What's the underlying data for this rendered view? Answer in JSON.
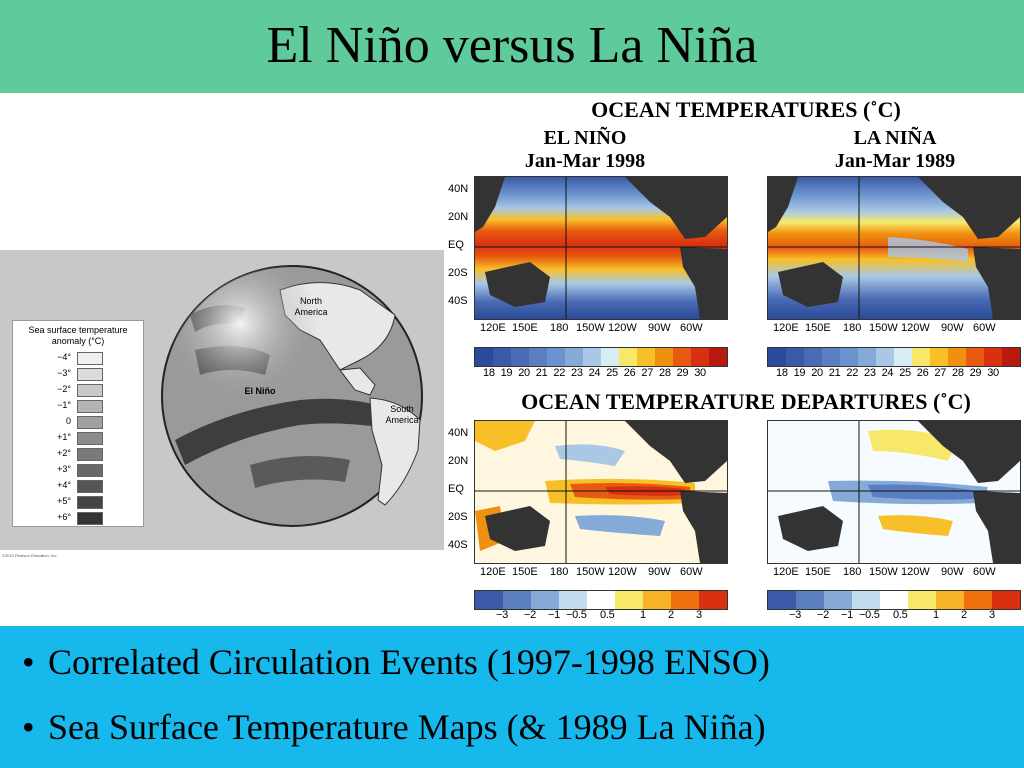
{
  "slide": {
    "title": "El Niño versus La Niña",
    "bullets": [
      "Correlated Circulation Events (1997-1998 ENSO)",
      "Sea Surface Temperature Maps (& 1989 La Niña)"
    ]
  },
  "globe_figure": {
    "legend_title": "Sea surface temperature anomaly (°C)",
    "legend_items": [
      {
        "label": "−4°",
        "color": "#f0f0f0"
      },
      {
        "label": "−3°",
        "color": "#dcdcdc"
      },
      {
        "label": "−2°",
        "color": "#c8c8c8"
      },
      {
        "label": "−1°",
        "color": "#b4b4b4"
      },
      {
        "label": "0",
        "color": "#a0a0a0"
      },
      {
        "label": "+1°",
        "color": "#8c8c8c"
      },
      {
        "label": "+2°",
        "color": "#7a7a7a"
      },
      {
        "label": "+3°",
        "color": "#686868"
      },
      {
        "label": "+4°",
        "color": "#565656"
      },
      {
        "label": "+5°",
        "color": "#444444"
      },
      {
        "label": "+6°",
        "color": "#333333"
      }
    ],
    "labels": {
      "north_america": "North America",
      "el_nino": "El Niño",
      "south_america": "South America"
    },
    "credit": "©2010 Pearson Education, Inc."
  },
  "ocean_temps": {
    "heading": "OCEAN TEMPERATURES (˚C)",
    "left_title": "EL NIÑO",
    "left_subtitle": "Jan-Mar 1998",
    "right_title": "LA NIÑA",
    "right_subtitle": "Jan-Mar 1989",
    "lat_labels": [
      "40N",
      "20N",
      "EQ",
      "20S",
      "40S"
    ],
    "lon_labels": [
      "120E",
      "150E",
      "180",
      "150W",
      "120W",
      "90W",
      "60W"
    ],
    "colorbar_labels": [
      "18",
      "19",
      "20",
      "21",
      "22",
      "23",
      "24",
      "25",
      "26",
      "27",
      "28",
      "29",
      "30"
    ],
    "colorbar_colors": [
      "#2a4a9a",
      "#3a5aa8",
      "#4a6ab4",
      "#5a7ec0",
      "#6a92cc",
      "#86aad8",
      "#a8c8e6",
      "#d8ecf4",
      "#f8e86a",
      "#f8c028",
      "#f09010",
      "#e85a10",
      "#d83010",
      "#b81a10"
    ]
  },
  "departures": {
    "heading": "OCEAN TEMPERATURE DEPARTURES (˚C)",
    "colorbar_labels": [
      "−3",
      "−2",
      "−1",
      "−0.5",
      "0.5",
      "1",
      "2",
      "3"
    ],
    "colorbar_colors": [
      "#3a5aa8",
      "#5a7ec0",
      "#86aad8",
      "#c0dcee",
      "#ffffff",
      "#f8e86a",
      "#f8b428",
      "#f07010",
      "#d83010"
    ]
  }
}
